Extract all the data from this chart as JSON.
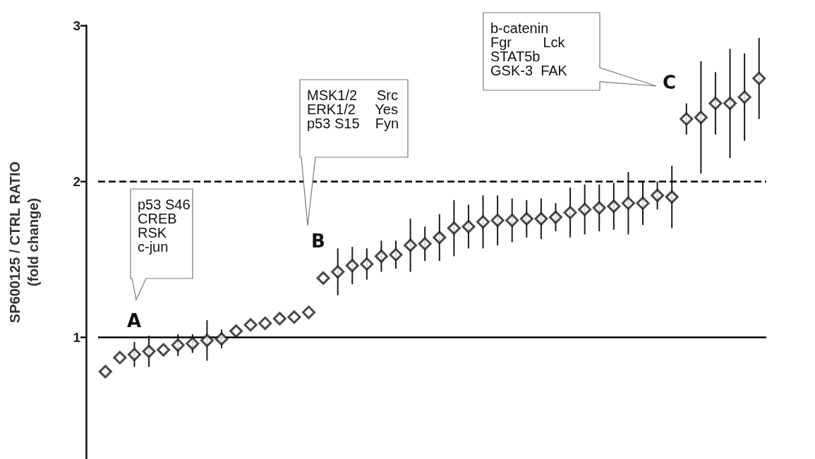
{
  "chart_data": {
    "type": "scatter",
    "ylabel": "SP600125 / CTRL RATIO\n(fold change)",
    "categories": [
      null,
      null,
      null,
      null,
      null,
      null,
      null,
      null,
      null,
      null,
      null,
      null,
      null,
      null,
      null,
      null,
      null,
      null,
      null,
      null,
      null,
      null,
      null,
      null,
      null,
      null,
      null,
      null,
      null,
      null,
      null,
      null,
      null,
      null,
      null,
      null,
      null,
      null,
      null,
      null,
      null,
      null,
      null,
      null,
      null,
      null
    ],
    "series": [
      {
        "color": "#1a1a1a",
        "values": [
          0.78,
          0.87,
          0.89,
          0.91,
          0.92,
          0.95,
          0.96,
          0.98,
          0.99,
          1.04,
          1.08,
          1.09,
          1.12,
          1.13,
          1.16,
          1.38,
          1.42,
          1.46,
          1.47,
          1.52,
          1.53,
          1.59,
          1.6,
          1.64,
          1.7,
          1.71,
          1.74,
          1.75,
          1.75,
          1.76,
          1.76,
          1.77,
          1.8,
          1.82,
          1.83,
          1.84,
          1.86,
          1.86,
          1.91,
          1.9,
          2.4,
          2.41,
          2.5,
          2.5,
          2.54,
          2.66
        ],
        "errors": [
          null,
          null,
          0.08,
          0.1,
          null,
          0.07,
          0.06,
          0.13,
          0.06,
          null,
          null,
          null,
          null,
          null,
          null,
          null,
          0.15,
          0.12,
          0.1,
          0.1,
          0.09,
          0.17,
          0.11,
          0.15,
          0.18,
          0.14,
          0.17,
          0.16,
          0.14,
          0.12,
          0.13,
          0.09,
          0.16,
          0.16,
          0.15,
          0.15,
          0.2,
          0.14,
          0.09,
          0.2,
          0.1,
          0.36,
          0.2,
          0.35,
          0.28,
          0.26
        ]
      }
    ],
    "ylim": [
      0.22,
      3
    ],
    "yticks": [
      1,
      2,
      3
    ],
    "grid": false,
    "marker": "diamond",
    "tick_labels": "y",
    "ref_lines": [
      {
        "axis": "y",
        "value": 1,
        "line_style": "solid",
        "color": "#000000"
      },
      {
        "axis": "y",
        "value": 2,
        "line_style": "dashed",
        "color": "#000000"
      }
    ],
    "annotations": [
      "p53 S46\nCREB\nRSK\nc-jun",
      "A",
      "MSK1/2     Src\nERK1/2     Yes\np53 S15    Fyn",
      "B",
      "b-catenin\nFgr        Lck\nSTAT5b\nGSK-3  FAK",
      "C"
    ]
  }
}
